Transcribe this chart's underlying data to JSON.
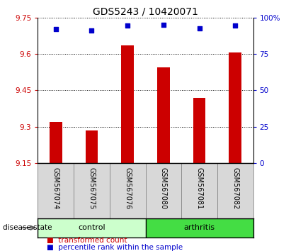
{
  "title": "GDS5243 / 10420071",
  "samples": [
    "GSM567074",
    "GSM567075",
    "GSM567076",
    "GSM567080",
    "GSM567081",
    "GSM567082"
  ],
  "bar_values": [
    9.32,
    9.285,
    9.635,
    9.545,
    9.42,
    9.605
  ],
  "percentile_values": [
    92,
    91,
    94.5,
    95,
    92.5,
    94.5
  ],
  "bar_color": "#cc0000",
  "dot_color": "#0000cc",
  "ylim_left": [
    9.15,
    9.75
  ],
  "ylim_right": [
    0,
    100
  ],
  "yticks_left": [
    9.15,
    9.3,
    9.45,
    9.6,
    9.75
  ],
  "yticks_right": [
    0,
    25,
    50,
    75,
    100
  ],
  "ytick_labels_right": [
    "0",
    "25",
    "50",
    "75",
    "100%"
  ],
  "groups": [
    {
      "label": "control",
      "indices": [
        0,
        1,
        2
      ],
      "color_light": "#ccffcc",
      "color_dark": "#44dd44"
    },
    {
      "label": "arthritis",
      "indices": [
        3,
        4,
        5
      ],
      "color_light": "#44ee44",
      "color_dark": "#44dd44"
    }
  ],
  "disease_state_label": "disease state",
  "legend_bar_label": "transformed count",
  "legend_dot_label": "percentile rank within the sample",
  "grid_color": "black",
  "tick_label_color_left": "#cc0000",
  "tick_label_color_right": "#0000cc",
  "sample_bg_color": "#d8d8d8",
  "bar_bottom": 9.15,
  "bar_width": 0.35,
  "dot_size": 25
}
